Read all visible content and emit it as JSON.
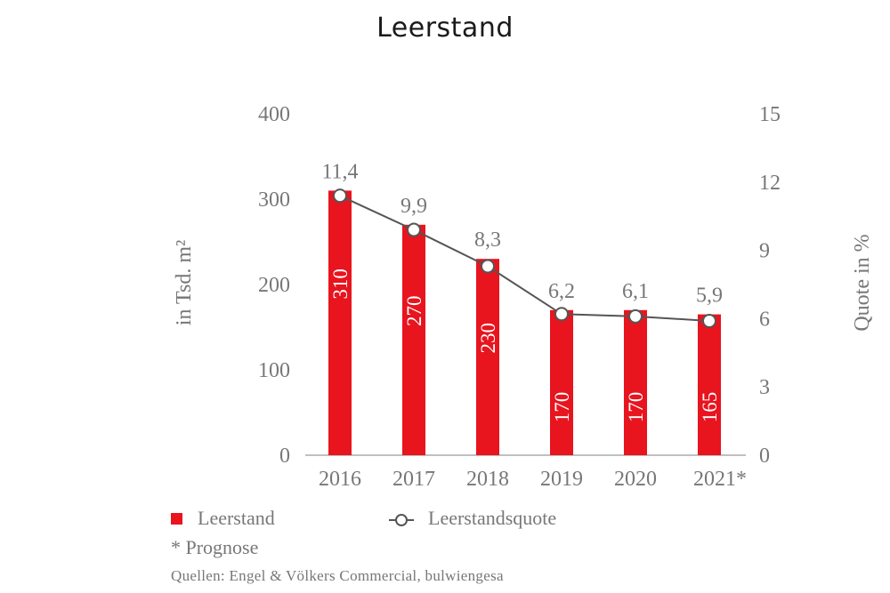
{
  "chart_data": {
    "type": "bar",
    "title": "Leerstand",
    "categories": [
      "2016",
      "2017",
      "2018",
      "2019",
      "2020",
      "2021*"
    ],
    "series": [
      {
        "name": "Leerstand",
        "type": "bar",
        "axis": "left",
        "color": "#e8141e",
        "values": [
          310,
          270,
          230,
          170,
          170,
          165
        ],
        "labels": [
          "310",
          "270",
          "230",
          "170",
          "170",
          "165"
        ]
      },
      {
        "name": "Leerstandsquote",
        "type": "line",
        "axis": "right",
        "color": "#555555",
        "values": [
          11.4,
          9.9,
          8.3,
          6.2,
          6.1,
          5.9
        ],
        "labels": [
          "11,4",
          "9,9",
          "8,3",
          "6,2",
          "6,1",
          "5,9"
        ]
      }
    ],
    "ylabel": "in Tsd. m²",
    "ylabel_right": "Quote in %",
    "ylim": [
      0,
      400
    ],
    "ylim_right": [
      0,
      15
    ],
    "yticks": [
      "0",
      "100",
      "200",
      "300",
      "400"
    ],
    "yticks_right": [
      "0",
      "3",
      "6",
      "9",
      "12",
      "15"
    ],
    "grid": false,
    "legend_position": "bottom-left"
  },
  "legend": {
    "bar_label": "Leerstand",
    "line_label": "Leerstandsquote"
  },
  "footnote": "* Prognose",
  "source": "Quellen: Engel & Völkers Commercial, bulwiengesa"
}
